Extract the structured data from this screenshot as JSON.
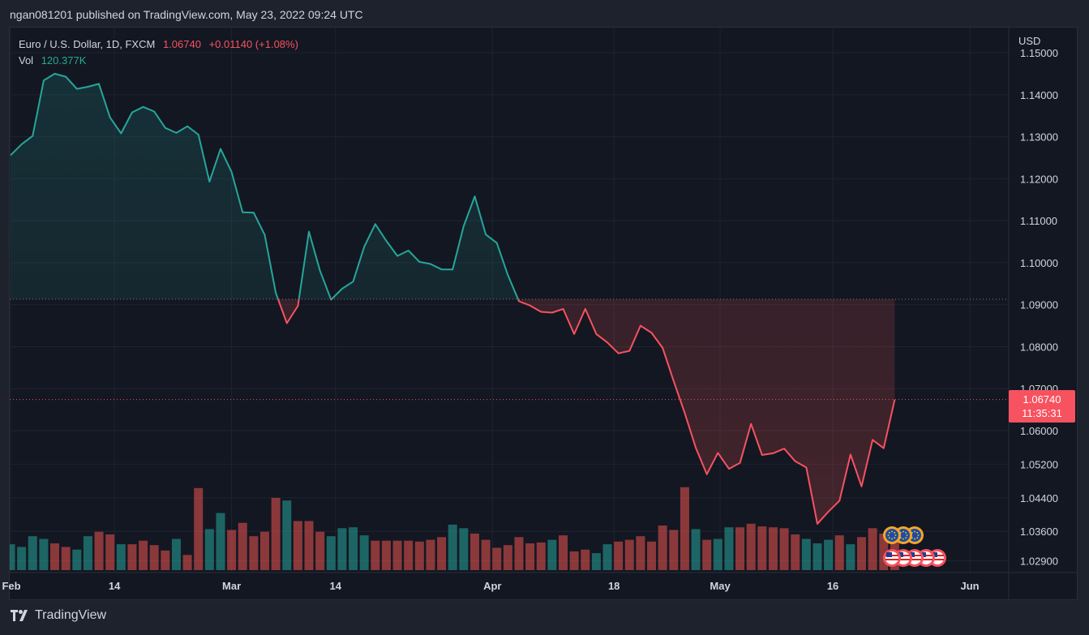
{
  "header": {
    "text": "ngan081201 published on TradingView.com, May 23, 2022 09:24 UTC"
  },
  "legend": {
    "symbol": "Euro / U.S. Dollar, 1D, FXCM",
    "price": "1.06740",
    "change": "+0.01140 (+1.08%)",
    "vol_label": "Vol",
    "vol_value": "120.377K"
  },
  "price_scale": {
    "currency": "USD",
    "last_price": "1.06740",
    "countdown": "11:35:31"
  },
  "footer": {
    "brand": "TradingView"
  },
  "colors": {
    "up": "#26a69a",
    "down": "#ef5350",
    "background": "#131722",
    "grid": "#1f2331",
    "text": "#d1d4dc",
    "last_price_tag": "#f7525f"
  },
  "chart_data": {
    "type": "line",
    "title": "Euro / U.S. Dollar, 1D, FXCM",
    "baseline": 1.0913,
    "ylim": [
      1.026,
      1.156
    ],
    "y_ticks": [
      {
        "label": "1.15000",
        "value": 1.15
      },
      {
        "label": "1.14000",
        "value": 1.14
      },
      {
        "label": "1.13000",
        "value": 1.13
      },
      {
        "label": "1.12000",
        "value": 1.12
      },
      {
        "label": "1.11000",
        "value": 1.11
      },
      {
        "label": "1.10000",
        "value": 1.1
      },
      {
        "label": "1.09000",
        "value": 1.09
      },
      {
        "label": "1.08000",
        "value": 1.08
      },
      {
        "label": "1.07000",
        "value": 1.07
      },
      {
        "label": "1.06000",
        "value": 1.06
      },
      {
        "label": "1.05200",
        "value": 1.052
      },
      {
        "label": "1.04400",
        "value": 1.044
      },
      {
        "label": "1.03600",
        "value": 1.036
      },
      {
        "label": "1.02900",
        "value": 1.029
      }
    ],
    "x_ticks": [
      {
        "label": "Feb",
        "index": 0
      },
      {
        "label": "14",
        "index": 9.4
      },
      {
        "label": "Mar",
        "index": 20
      },
      {
        "label": "14",
        "index": 29.4
      },
      {
        "label": "Apr",
        "index": 43.6
      },
      {
        "label": "18",
        "index": 54.6
      },
      {
        "label": "May",
        "index": 64.2
      },
      {
        "label": "16",
        "index": 74.4
      },
      {
        "label": "Jun",
        "index": 86.8
      }
    ],
    "series": [
      {
        "values": [
          1.1256,
          1.1282,
          1.1302,
          1.1434,
          1.145,
          1.1443,
          1.1414,
          1.1419,
          1.1426,
          1.1346,
          1.1308,
          1.1358,
          1.1371,
          1.136,
          1.1321,
          1.1309,
          1.1325,
          1.1305,
          1.1193,
          1.1271,
          1.1216,
          1.112,
          1.1119,
          1.1066,
          1.0928,
          1.0856,
          1.0897,
          1.1074,
          1.0981,
          1.0912,
          1.0938,
          1.0955,
          1.1038,
          1.1092,
          1.1052,
          1.1016,
          1.1029,
          1.1002,
          1.0997,
          1.0984,
          1.0984,
          1.1087,
          1.1158,
          1.1067,
          1.1047,
          1.097,
          1.0908,
          1.0898,
          1.0883,
          1.0881,
          1.089,
          1.083,
          1.089,
          1.083,
          1.081,
          1.0784,
          1.079,
          1.085,
          1.0833,
          1.0797,
          1.0718,
          1.0642,
          1.0559,
          1.0496,
          1.0547,
          1.0509,
          1.0523,
          1.0616,
          1.0542,
          1.0546,
          1.0557,
          1.0527,
          1.0512,
          1.0378,
          1.0407,
          1.0433,
          1.0543,
          1.0467,
          1.0578,
          1.0558,
          1.0674
        ]
      }
    ],
    "volume": {
      "ylim": [
        0,
        130
      ],
      "values": [
        29,
        26,
        38,
        35,
        30,
        26,
        23,
        38,
        43,
        40,
        29,
        29,
        33,
        28,
        22,
        35,
        17,
        92,
        46,
        64,
        45,
        53,
        38,
        43,
        81,
        78,
        55,
        55,
        43,
        38,
        47,
        48,
        39,
        33,
        33,
        33,
        33,
        32,
        34,
        37,
        51,
        47,
        41,
        34,
        25,
        28,
        37,
        30,
        31,
        34,
        39,
        21,
        23,
        19,
        29,
        32,
        34,
        38,
        32,
        50,
        45,
        93,
        46,
        34,
        35,
        48,
        48,
        52,
        49,
        48,
        47,
        40,
        35,
        30,
        34,
        39,
        29,
        37,
        47,
        41,
        32
      ],
      "up": [
        true,
        true,
        true,
        true,
        false,
        false,
        true,
        true,
        false,
        false,
        true,
        false,
        false,
        false,
        false,
        true,
        false,
        false,
        true,
        true,
        false,
        false,
        false,
        false,
        false,
        true,
        false,
        false,
        false,
        true,
        true,
        true,
        true,
        false,
        false,
        false,
        false,
        false,
        false,
        false,
        true,
        true,
        false,
        false,
        false,
        false,
        false,
        false,
        false,
        true,
        false,
        false,
        false,
        true,
        true,
        false,
        false,
        false,
        false,
        false,
        false,
        false,
        true,
        false,
        true,
        true,
        false,
        false,
        false,
        false,
        false,
        false,
        true,
        true,
        true,
        false,
        true,
        false,
        false,
        false,
        false
      ]
    }
  }
}
